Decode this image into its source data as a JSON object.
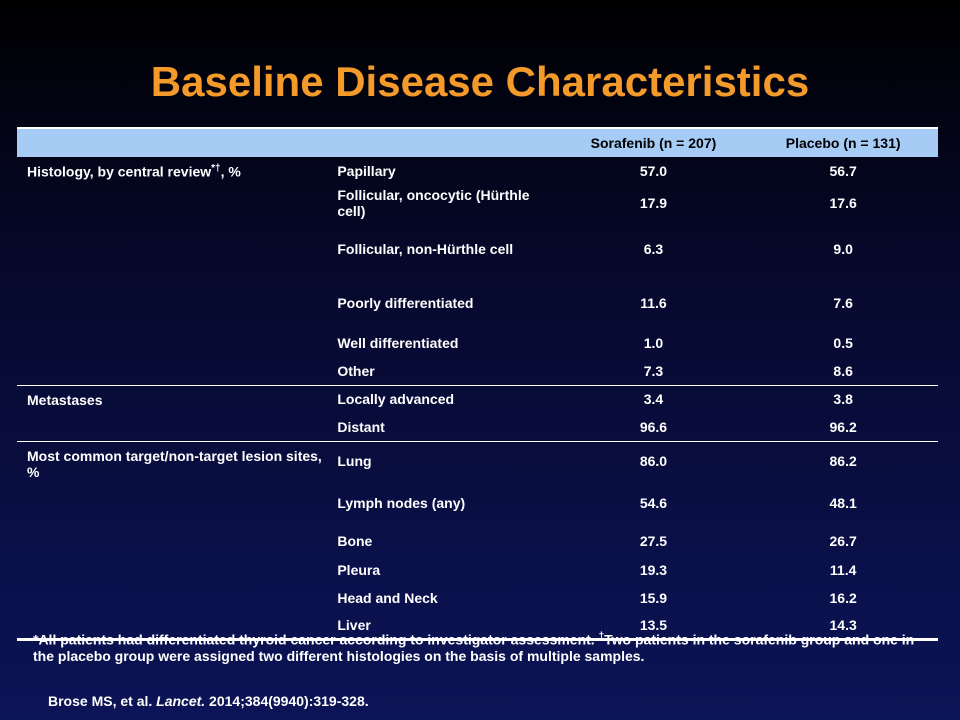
{
  "title": "Baseline Disease Characteristics",
  "table": {
    "headers": [
      "",
      "",
      "Sorafenib (n = 207)",
      "Placebo (n = 131)"
    ],
    "groups": [
      {
        "category": "Histology, by central review",
        "category_mark": "*†",
        "category_suffix": ", %",
        "rows": [
          {
            "label": "Papillary",
            "sorafenib": "57.0",
            "placebo": "56.7"
          },
          {
            "label": "Follicular, oncocytic (Hürthle cell)",
            "sorafenib": "17.9",
            "placebo": "17.6"
          },
          {
            "label": "Follicular, non-Hürthle cell",
            "sorafenib": "6.3",
            "placebo": "9.0"
          },
          {
            "label": "Poorly differentiated",
            "sorafenib": "11.6",
            "placebo": "7.6"
          },
          {
            "label": "Well differentiated",
            "sorafenib": "1.0",
            "placebo": "0.5"
          },
          {
            "label": "Other",
            "sorafenib": "7.3",
            "placebo": "8.6"
          }
        ]
      },
      {
        "category": "Metastases",
        "rows": [
          {
            "label": "Locally advanced",
            "sorafenib": "3.4",
            "placebo": "3.8"
          },
          {
            "label": "Distant",
            "sorafenib": "96.6",
            "placebo": "96.2"
          }
        ]
      },
      {
        "category": "Most common target/non-target lesion sites, %",
        "rows": [
          {
            "label": "Lung",
            "sorafenib": "86.0",
            "placebo": "86.2"
          },
          {
            "label": "Lymph nodes (any)",
            "sorafenib": "54.6",
            "placebo": "48.1"
          },
          {
            "label": "Bone",
            "sorafenib": "27.5",
            "placebo": "26.7"
          },
          {
            "label": "Pleura",
            "sorafenib": "19.3",
            "placebo": "11.4"
          },
          {
            "label": "Head and Neck",
            "sorafenib": "15.9",
            "placebo": "16.2"
          },
          {
            "label": "Liver",
            "sorafenib": "13.5",
            "placebo": "14.3"
          }
        ]
      }
    ]
  },
  "footnote": {
    "part1": "*All patients had differentiated thyroid cancer according to investigator assessment. ",
    "mark": "†",
    "part2": "Two patients in the sorafenib group and one in the placebo group were assigned two different histologies on the basis of multiple samples."
  },
  "citation": {
    "authors": "Brose MS, et al. ",
    "journal": "Lancet.",
    "details": " 2014;384(9940):319-328."
  }
}
